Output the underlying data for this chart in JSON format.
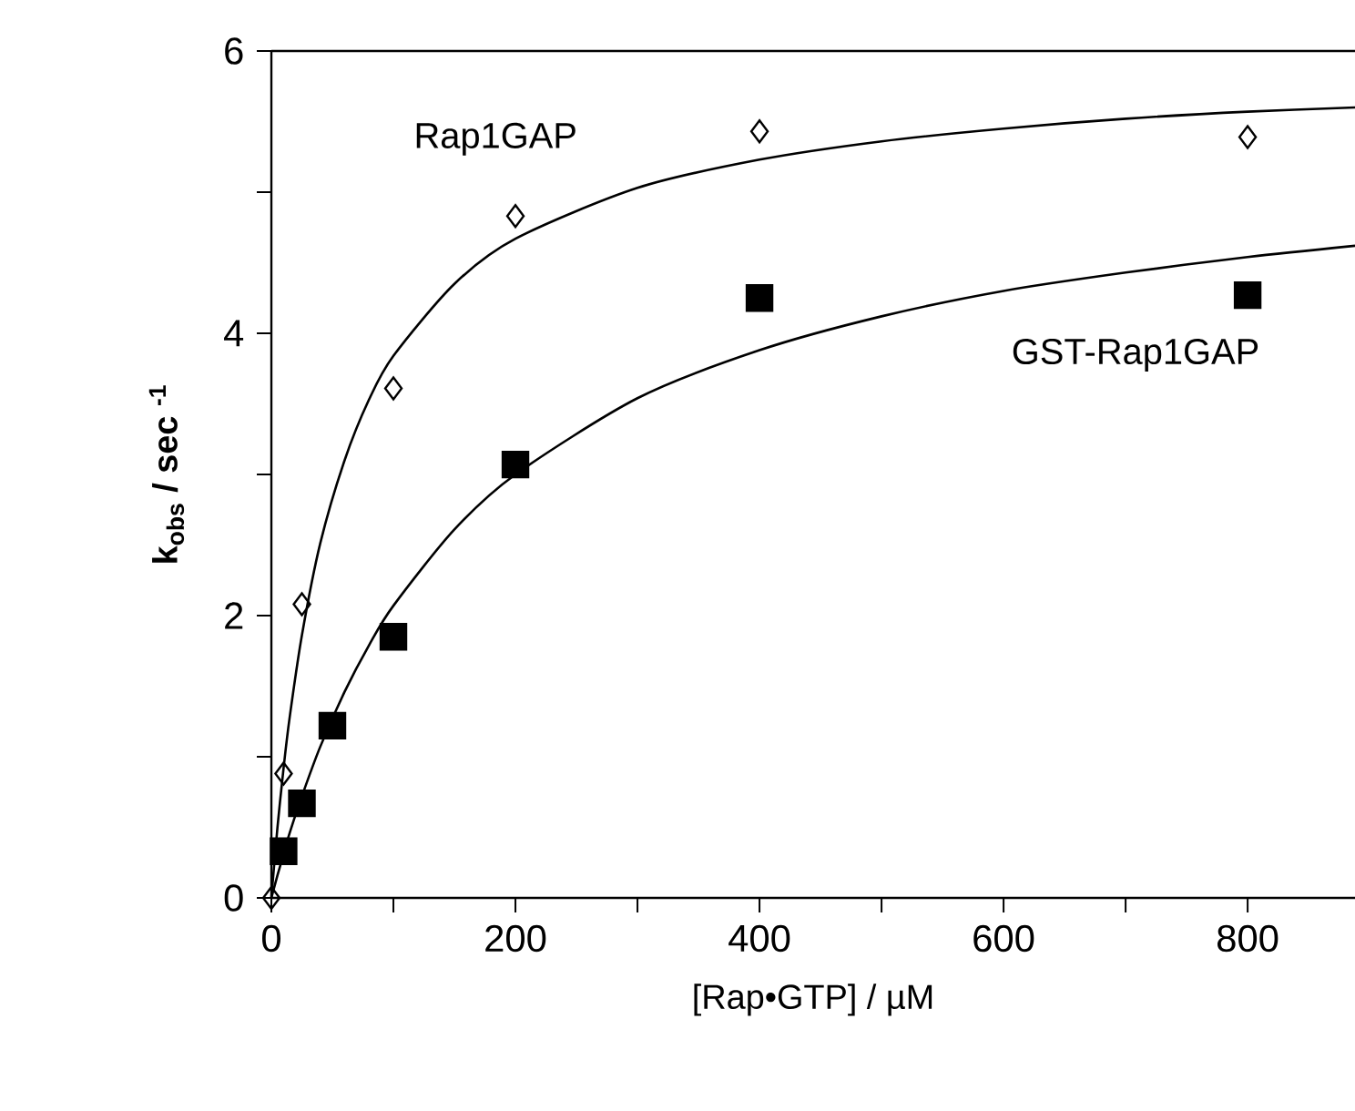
{
  "chart_data": {
    "type": "scatter",
    "xlabel": "[Rap•GTP] / µM",
    "ylabel": "**k$_{obs}$ / sec $^{-1}$**",
    "xlim": [
      0,
      888
    ],
    "ylim": [
      0,
      6
    ],
    "xticks": [
      0,
      {
        "value": 100,
        "label": null
      },
      200,
      {
        "value": 300,
        "label": null
      },
      400,
      {
        "value": 500,
        "label": null
      },
      600,
      {
        "value": 700,
        "label": null
      },
      800
    ],
    "yticks": [
      0,
      {
        "value": 1,
        "label": null
      },
      2,
      {
        "value": 3,
        "label": null
      },
      4,
      {
        "value": 5,
        "label": null
      },
      6
    ],
    "grid": false,
    "legend": false,
    "series": [
      {
        "name": "Rap1GAP",
        "marker": "diamond",
        "color": "#000000",
        "x": [
          0,
          10,
          25,
          100,
          200,
          400,
          800
        ],
        "values": [
          0,
          0.88,
          2.08,
          3.61,
          4.83,
          5.43,
          5.39
        ]
      },
      {
        "name": "GST-Rap1GAP",
        "marker": "square",
        "color": "#000000",
        "x": [
          10,
          25,
          50,
          100,
          200,
          400,
          800
        ],
        "values": [
          0.33,
          0.67,
          1.22,
          1.85,
          3.07,
          4.25,
          4.27
        ]
      },
      {
        "type": "line",
        "marker": "none",
        "line_style": "solid",
        "color": "#000000",
        "x": [
          0,
          5,
          10,
          15,
          25,
          40,
          60,
          80,
          100,
          150,
          200,
          300,
          400,
          500,
          600,
          700,
          800,
          888
        ],
        "values": [
          0,
          0.5,
          0.92,
          1.28,
          1.86,
          2.51,
          3.1,
          3.53,
          3.84,
          4.35,
          4.67,
          5.03,
          5.23,
          5.36,
          5.45,
          5.52,
          5.57,
          5.6
        ]
      },
      {
        "type": "line",
        "marker": "none",
        "line_style": "solid",
        "color": "#000000",
        "x": [
          0,
          5,
          10,
          15,
          25,
          40,
          60,
          80,
          100,
          150,
          200,
          300,
          400,
          500,
          600,
          700,
          800,
          888
        ],
        "values": [
          0,
          0.16,
          0.31,
          0.46,
          0.72,
          1.07,
          1.46,
          1.79,
          2.07,
          2.61,
          3.0,
          3.54,
          3.88,
          4.12,
          4.3,
          4.43,
          4.54,
          4.62
        ]
      }
    ]
  }
}
